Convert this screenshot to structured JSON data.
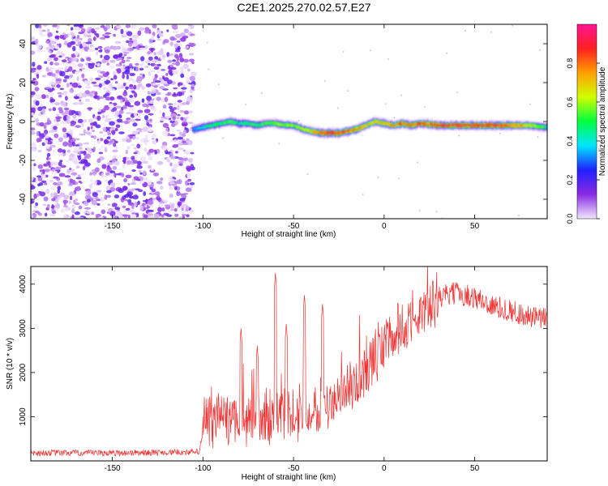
{
  "title": "C2E1.2025.270.02.57.E27",
  "chart_data": [
    {
      "type": "heatmap",
      "name": "spectrogram",
      "xlabel": "Height of straight line (km)",
      "ylabel": "Frequency (Hz)",
      "xlim": [
        -195,
        90
      ],
      "ylim": [
        -50,
        50
      ],
      "xticks": [
        -150,
        -100,
        -50,
        0,
        50
      ],
      "yticks": [
        40,
        20,
        0,
        -20,
        -40
      ],
      "noise_region_km": [
        -195,
        -105
      ],
      "ridge": {
        "x": [
          -105,
          -100,
          -95,
          -90,
          -85,
          -80,
          -75,
          -70,
          -65,
          -60,
          -55,
          -50,
          -45,
          -40,
          -35,
          -30,
          -25,
          -20,
          -15,
          -10,
          -5,
          0,
          5,
          10,
          15,
          20,
          30,
          40,
          50,
          60,
          70,
          80,
          90
        ],
        "freq": [
          -4,
          -3,
          -2,
          -1,
          0,
          -1,
          -1,
          -2,
          -1,
          -1,
          -2,
          -2,
          -4,
          -5,
          -6,
          -6,
          -6,
          -5,
          -4,
          -2,
          0,
          -1,
          -2,
          -1,
          -2,
          -1,
          -2,
          -2,
          -2,
          -2,
          -2,
          -2,
          -3
        ],
        "amplitude": [
          0.35,
          0.45,
          0.5,
          0.5,
          0.55,
          0.5,
          0.5,
          0.55,
          0.55,
          0.6,
          0.6,
          0.6,
          0.65,
          0.7,
          0.85,
          0.9,
          0.85,
          0.85,
          0.8,
          0.75,
          0.7,
          0.75,
          0.8,
          0.85,
          0.85,
          0.85,
          0.9,
          0.9,
          0.9,
          0.9,
          0.85,
          0.7,
          0.5
        ]
      },
      "colorbar": {
        "label": "Normalized spectral amplitude",
        "ticks": [
          "0.0",
          "0.2",
          "0.4",
          "0.6",
          "0.8"
        ],
        "range": [
          0,
          1
        ],
        "colors": [
          "#f2e8ff",
          "#8a2be2",
          "#2020ff",
          "#00e5ff",
          "#00ff40",
          "#d0ff00",
          "#ffa000",
          "#ff2020",
          "#ff1493"
        ]
      }
    },
    {
      "type": "line",
      "name": "snr",
      "xlabel": "Height of straight line (km)",
      "ylabel": "SNR (10 * v/v)",
      "xlim": [
        -195,
        90
      ],
      "ylim": [
        0,
        4400
      ],
      "xticks": [
        -150,
        -100,
        -50,
        0,
        50
      ],
      "yticks": [
        1000,
        2000,
        3000,
        4000
      ],
      "color": "#ee3333",
      "envelope": {
        "x": [
          -195,
          -150,
          -102,
          -99,
          -90,
          -80,
          -70,
          -60,
          -50,
          -40,
          -30,
          -20,
          -10,
          0,
          10,
          20,
          30,
          40,
          50,
          60,
          70,
          80,
          90
        ],
        "base": [
          180,
          180,
          200,
          900,
          950,
          900,
          950,
          1000,
          1050,
          1200,
          1400,
          1650,
          2000,
          2650,
          3000,
          3400,
          3700,
          3800,
          3700,
          3500,
          3400,
          3250,
          3200
        ]
      },
      "spikes": [
        {
          "x": -60,
          "value": 4250
        },
        {
          "x": -44,
          "value": 3750
        },
        {
          "x": -34,
          "value": 3550
        },
        {
          "x": -79,
          "value": 3000
        },
        {
          "x": -54,
          "value": 3100
        },
        {
          "x": -70,
          "value": 2600
        }
      ]
    }
  ]
}
